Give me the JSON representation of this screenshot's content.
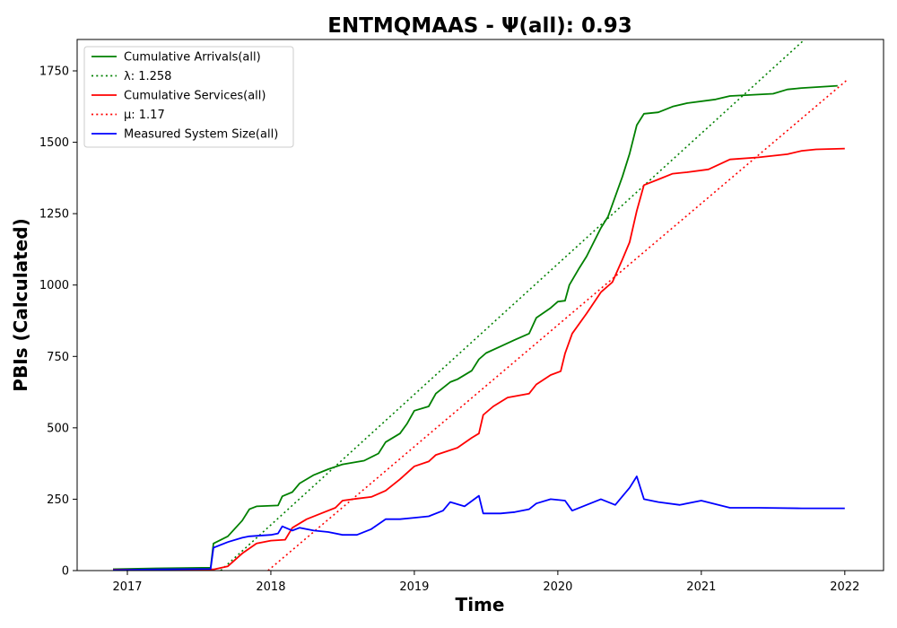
{
  "chart_data": {
    "type": "line",
    "title": "ENTMQMAAS -  Ψ(all): 0.93",
    "xlabel": "Time",
    "ylabel": "PBIs (Calculated)",
    "xlim": [
      2016.65,
      2022.27
    ],
    "ylim": [
      0,
      1860
    ],
    "x_ticks": [
      2017,
      2018,
      2019,
      2020,
      2021,
      2022
    ],
    "y_ticks": [
      0,
      250,
      500,
      750,
      1000,
      1250,
      1500,
      1750
    ],
    "grid": false,
    "legend_position": "top-left",
    "series": [
      {
        "name": "Cumulative Arrivals(all)",
        "style": "solid",
        "color": "#008000",
        "points": [
          [
            2016.9,
            5
          ],
          [
            2017.2,
            8
          ],
          [
            2017.58,
            10
          ],
          [
            2017.6,
            95
          ],
          [
            2017.7,
            120
          ],
          [
            2017.8,
            175
          ],
          [
            2017.85,
            215
          ],
          [
            2017.9,
            225
          ],
          [
            2018.05,
            228
          ],
          [
            2018.08,
            260
          ],
          [
            2018.15,
            275
          ],
          [
            2018.2,
            305
          ],
          [
            2018.3,
            335
          ],
          [
            2018.4,
            355
          ],
          [
            2018.5,
            372
          ],
          [
            2018.65,
            385
          ],
          [
            2018.75,
            410
          ],
          [
            2018.8,
            450
          ],
          [
            2018.9,
            480
          ],
          [
            2018.95,
            515
          ],
          [
            2019.0,
            560
          ],
          [
            2019.1,
            575
          ],
          [
            2019.15,
            620
          ],
          [
            2019.25,
            660
          ],
          [
            2019.3,
            670
          ],
          [
            2019.4,
            700
          ],
          [
            2019.45,
            740
          ],
          [
            2019.5,
            762
          ],
          [
            2019.6,
            785
          ],
          [
            2019.7,
            808
          ],
          [
            2019.8,
            830
          ],
          [
            2019.85,
            885
          ],
          [
            2019.95,
            920
          ],
          [
            2020.0,
            942
          ],
          [
            2020.05,
            945
          ],
          [
            2020.08,
            1000
          ],
          [
            2020.15,
            1060
          ],
          [
            2020.2,
            1100
          ],
          [
            2020.3,
            1200
          ],
          [
            2020.35,
            1240
          ],
          [
            2020.45,
            1380
          ],
          [
            2020.5,
            1460
          ],
          [
            2020.55,
            1560
          ],
          [
            2020.6,
            1600
          ],
          [
            2020.7,
            1605
          ],
          [
            2020.8,
            1625
          ],
          [
            2020.9,
            1637
          ],
          [
            2021.1,
            1650
          ],
          [
            2021.2,
            1662
          ],
          [
            2021.5,
            1670
          ],
          [
            2021.6,
            1685
          ],
          [
            2021.7,
            1690
          ],
          [
            2021.95,
            1698
          ]
        ]
      },
      {
        "name": "λ: 1.258",
        "style": "dotted",
        "color": "#008000",
        "points": [
          [
            2017.65,
            0
          ],
          [
            2021.72,
            1860
          ]
        ]
      },
      {
        "name": "Cumulative Services(all)",
        "style": "solid",
        "color": "#ff0000",
        "points": [
          [
            2016.9,
            3
          ],
          [
            2017.6,
            4
          ],
          [
            2017.7,
            15
          ],
          [
            2017.8,
            60
          ],
          [
            2017.9,
            95
          ],
          [
            2018.0,
            105
          ],
          [
            2018.1,
            108
          ],
          [
            2018.15,
            150
          ],
          [
            2018.25,
            180
          ],
          [
            2018.35,
            200
          ],
          [
            2018.45,
            220
          ],
          [
            2018.5,
            245
          ],
          [
            2018.6,
            252
          ],
          [
            2018.7,
            258
          ],
          [
            2018.8,
            280
          ],
          [
            2018.9,
            320
          ],
          [
            2019.0,
            365
          ],
          [
            2019.1,
            382
          ],
          [
            2019.15,
            405
          ],
          [
            2019.3,
            430
          ],
          [
            2019.4,
            465
          ],
          [
            2019.45,
            480
          ],
          [
            2019.48,
            545
          ],
          [
            2019.55,
            575
          ],
          [
            2019.65,
            606
          ],
          [
            2019.8,
            620
          ],
          [
            2019.85,
            652
          ],
          [
            2019.95,
            685
          ],
          [
            2020.02,
            698
          ],
          [
            2020.05,
            760
          ],
          [
            2020.1,
            830
          ],
          [
            2020.2,
            900
          ],
          [
            2020.3,
            975
          ],
          [
            2020.38,
            1010
          ],
          [
            2020.45,
            1090
          ],
          [
            2020.5,
            1150
          ],
          [
            2020.55,
            1260
          ],
          [
            2020.6,
            1350
          ],
          [
            2020.7,
            1370
          ],
          [
            2020.8,
            1390
          ],
          [
            2020.9,
            1395
          ],
          [
            2021.05,
            1405
          ],
          [
            2021.2,
            1440
          ],
          [
            2021.4,
            1447
          ],
          [
            2021.6,
            1458
          ],
          [
            2021.7,
            1470
          ],
          [
            2021.8,
            1475
          ],
          [
            2022.0,
            1478
          ]
        ]
      },
      {
        "name": "μ: 1.17",
        "style": "dotted",
        "color": "#ff0000",
        "points": [
          [
            2017.98,
            0
          ],
          [
            2022.02,
            1720
          ]
        ]
      },
      {
        "name": "Measured System Size(all)",
        "style": "solid",
        "color": "#0000ff",
        "points": [
          [
            2016.9,
            2
          ],
          [
            2017.2,
            4
          ],
          [
            2017.58,
            6
          ],
          [
            2017.6,
            80
          ],
          [
            2017.7,
            100
          ],
          [
            2017.8,
            115
          ],
          [
            2017.85,
            120
          ],
          [
            2018.0,
            125
          ],
          [
            2018.05,
            130
          ],
          [
            2018.08,
            155
          ],
          [
            2018.15,
            140
          ],
          [
            2018.2,
            150
          ],
          [
            2018.3,
            140
          ],
          [
            2018.4,
            135
          ],
          [
            2018.5,
            125
          ],
          [
            2018.6,
            125
          ],
          [
            2018.7,
            145
          ],
          [
            2018.8,
            180
          ],
          [
            2018.9,
            180
          ],
          [
            2019.0,
            185
          ],
          [
            2019.1,
            190
          ],
          [
            2019.2,
            210
          ],
          [
            2019.25,
            240
          ],
          [
            2019.35,
            225
          ],
          [
            2019.45,
            262
          ],
          [
            2019.48,
            200
          ],
          [
            2019.6,
            200
          ],
          [
            2019.7,
            205
          ],
          [
            2019.8,
            215
          ],
          [
            2019.85,
            235
          ],
          [
            2019.95,
            250
          ],
          [
            2020.05,
            245
          ],
          [
            2020.1,
            210
          ],
          [
            2020.2,
            230
          ],
          [
            2020.3,
            250
          ],
          [
            2020.4,
            230
          ],
          [
            2020.45,
            260
          ],
          [
            2020.5,
            290
          ],
          [
            2020.55,
            330
          ],
          [
            2020.6,
            250
          ],
          [
            2020.7,
            240
          ],
          [
            2020.85,
            230
          ],
          [
            2021.0,
            245
          ],
          [
            2021.2,
            220
          ],
          [
            2021.4,
            220
          ],
          [
            2021.7,
            218
          ],
          [
            2022.0,
            218
          ]
        ]
      }
    ]
  }
}
